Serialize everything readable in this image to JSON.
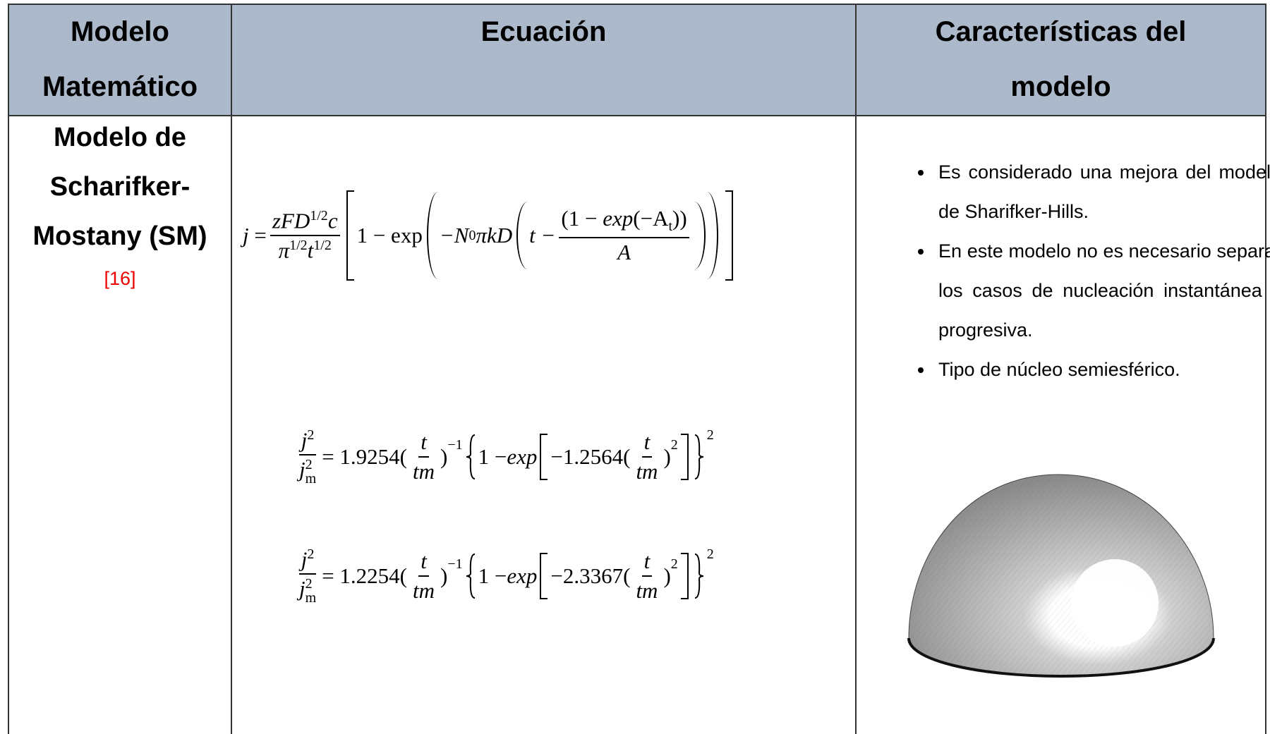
{
  "table": {
    "headers": [
      "Modelo Matemático",
      "Ecuación",
      "Características del modelo"
    ],
    "model": {
      "name": "Modelo de Scharifker-Mostany (SM)",
      "ref": "[16]"
    },
    "equations": [
      {
        "lhs": "j",
        "eq": "=",
        "num": "zFD",
        "num_sup": "1/2",
        "num_tail": "c",
        "den_a": "π",
        "den_a_sup": "1/2",
        "den_b": "t",
        "den_b_sup": "1/2",
        "one_minus": "1 − exp",
        "neg_n": "−N",
        "n_sub": "0",
        "pikd": "πkD",
        "t_minus": "t −",
        "in_num": "(1 − ",
        "in_exp": "exp",
        "in_open": "(−A",
        "in_sub": "t",
        "in_close": "))",
        "in_den": "A"
      },
      {
        "lhs_num": "j",
        "lhs_num_sup": "2",
        "lhs_den": "j",
        "lhs_den_sup": "2",
        "lhs_den_sub": "m",
        "coef": "= 1.9254(",
        "t": "t",
        "tm": "tm",
        "pow1": ")",
        "pow1_sup": "−1",
        "one_minus": "1 − ",
        "exp": "exp",
        "inner_coef": "−1.2564(",
        "t2": "t",
        "tm2": "tm",
        "pow2": ")",
        "pow2_sup": "2",
        "outer_sup": "2"
      },
      {
        "lhs_num": "j",
        "lhs_num_sup": "2",
        "lhs_den": "j",
        "lhs_den_sup": "2",
        "lhs_den_sub": "m",
        "coef": "= 1.2254(",
        "t": "t",
        "tm": "tm",
        "pow1": ")",
        "pow1_sup": "−1",
        "one_minus": "1 − ",
        "exp": "exp",
        "inner_coef": "−2.3367(",
        "t2": "t",
        "tm2": "tm",
        "pow2": ")",
        "pow2_sup": "2",
        "outer_sup": "2"
      }
    ],
    "characteristics": [
      "Es considerado una mejora del modelo de Sharifker-Hills.",
      "En este modelo no es necesario separar los casos de nucleación instantánea y progresiva.",
      "Tipo de núcleo semiesférico."
    ]
  }
}
